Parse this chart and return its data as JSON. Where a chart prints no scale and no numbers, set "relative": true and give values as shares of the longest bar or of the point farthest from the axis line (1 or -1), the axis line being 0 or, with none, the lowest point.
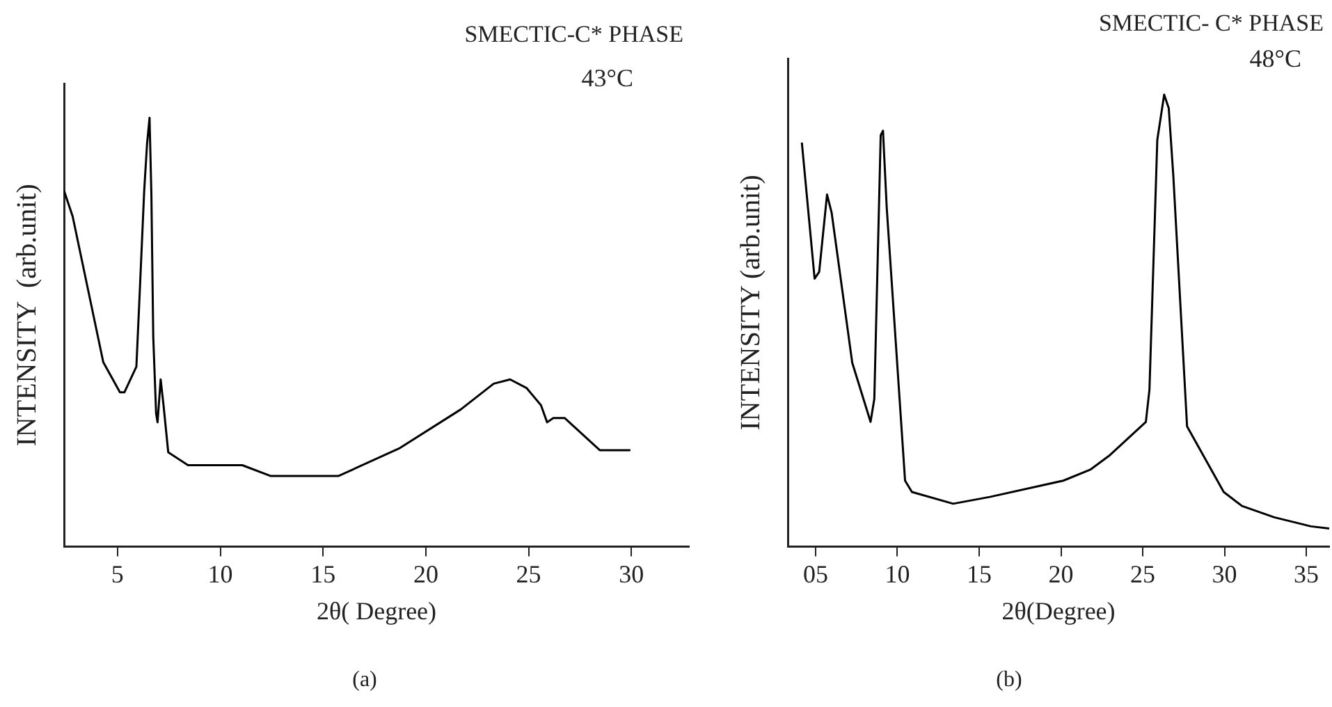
{
  "chart_data": [
    {
      "type": "line",
      "title": "SMECTIC-C* PHASE",
      "subtitle": "43°C",
      "xlabel": "2θ( Degree)",
      "ylabel": "INTENSITY  (arb.unit)",
      "annotations": [
        "(a)"
      ],
      "relative": true,
      "grid": false,
      "legend": false,
      "marker": "none",
      "line_style": "solid",
      "xlim": [
        2.4,
        32.8
      ],
      "xticks": [
        5,
        10,
        15,
        20,
        25,
        30
      ],
      "series": [
        {
          "color": "#000000",
          "x": [
            2.4,
            2.82,
            4.31,
            5.12,
            5.34,
            5.92,
            6.08,
            6.3,
            6.44,
            6.56,
            6.65,
            6.74,
            6.88,
            6.95,
            7.1,
            7.24,
            7.47,
            8.43,
            11.07,
            12.44,
            15.76,
            18.74,
            21.7,
            23.3,
            24.1,
            24.9,
            25.6,
            25.9,
            26.2,
            26.75,
            28.46,
            29.95
          ],
          "values": [
            0.83,
            0.77,
            0.43,
            0.36,
            0.36,
            0.42,
            0.59,
            0.83,
            0.94,
            1.0,
            0.82,
            0.49,
            0.31,
            0.29,
            0.39,
            0.33,
            0.22,
            0.19,
            0.19,
            0.165,
            0.165,
            0.23,
            0.32,
            0.38,
            0.39,
            0.37,
            0.33,
            0.29,
            0.3,
            0.3,
            0.225,
            0.225
          ]
        }
      ]
    },
    {
      "type": "line",
      "title": "SMECTIC- C* PHASE",
      "subtitle": "48°C",
      "xlabel": "2θ(Degree)",
      "ylabel": "INTENSITY (arb.unit)",
      "annotations": [
        "(b)"
      ],
      "relative": true,
      "grid": false,
      "legend": false,
      "marker": "none",
      "line_style": "solid",
      "xlim": [
        3.3,
        36.4
      ],
      "xticks": [
        {
          "value": 5,
          "label": "05"
        },
        10,
        15,
        20,
        25,
        30,
        35
      ],
      "series": [
        {
          "color": "#000000",
          "x": [
            4.16,
            4.94,
            5.22,
            5.7,
            5.98,
            7.24,
            8.36,
            8.59,
            8.98,
            9.12,
            9.35,
            10.47,
            10.89,
            13.41,
            15.65,
            20.14,
            21.82,
            22.94,
            25.19,
            25.41,
            25.89,
            26.31,
            26.59,
            26.87,
            27.71,
            29.95,
            31.07,
            33.04,
            35.28,
            36.4
          ],
          "values": [
            0.894,
            0.593,
            0.608,
            0.779,
            0.739,
            0.407,
            0.276,
            0.327,
            0.91,
            0.92,
            0.749,
            0.146,
            0.121,
            0.095,
            0.11,
            0.146,
            0.171,
            0.201,
            0.276,
            0.347,
            0.9,
            1.0,
            0.97,
            0.82,
            0.266,
            0.121,
            0.09,
            0.065,
            0.045,
            0.04
          ]
        }
      ]
    }
  ]
}
